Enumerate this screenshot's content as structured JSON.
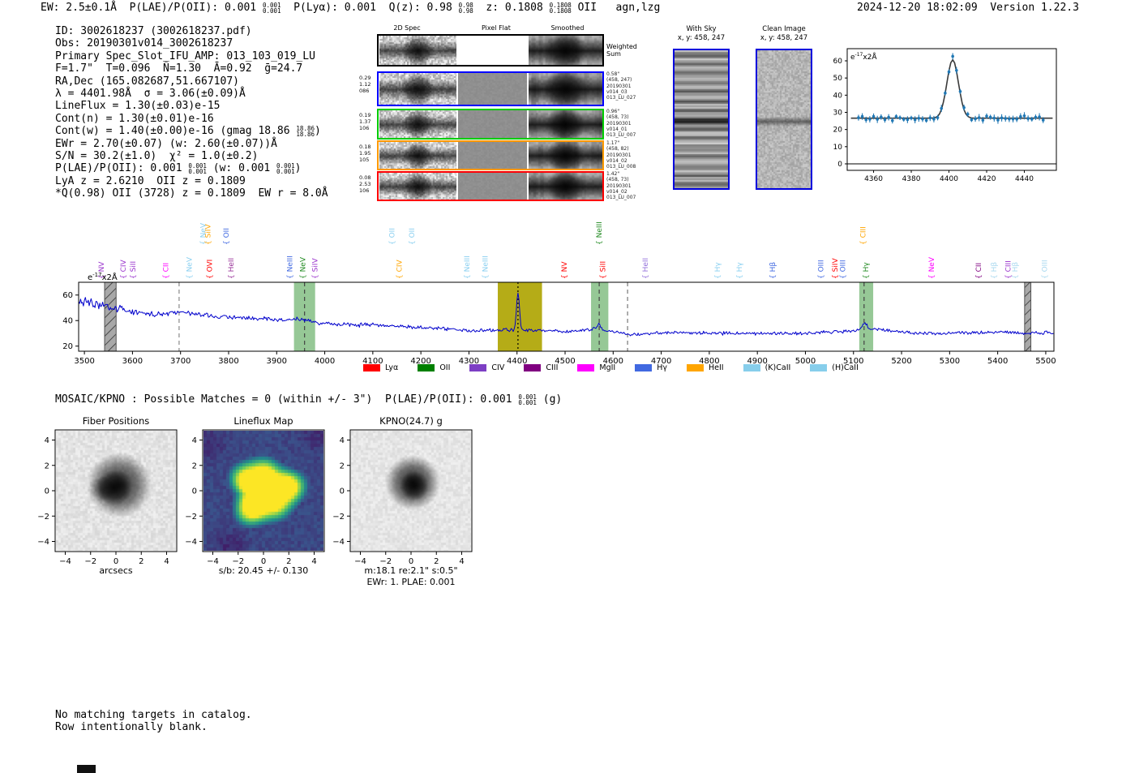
{
  "header": {
    "segments": [
      {
        "t": "EW: 2.5±0.1Å  P(LAE)/P(OII): 0.001 "
      },
      {
        "s": [
          "0.001",
          "0.001"
        ]
      },
      {
        "t": "  P(Lyα): 0.001  Q(z): 0.98 "
      },
      {
        "s": [
          "0.98",
          "0.98"
        ]
      },
      {
        "t": "  z: 0.1808 "
      },
      {
        "s": [
          "0.1808",
          "0.1808"
        ]
      },
      {
        "t": " OII   agn,lzg"
      }
    ],
    "right": "2024-12-20 18:02:09  Version 1.22.3"
  },
  "info_lines": [
    [
      {
        "t": "ID: 3002618237 (3002618237.pdf)"
      }
    ],
    [
      {
        "t": "Obs: 20190301v014_3002618237"
      }
    ],
    [
      {
        "t": "Primary Spec_Slot_IFU_AMP: 013_103_019_LU"
      }
    ],
    [
      {
        "t": "F=1.7\"  T=0.096  N̄=1.30  Ā=0.92  ḡ=24.7"
      }
    ],
    [
      {
        "t": "RA,Dec (165.082687,51.667107)"
      }
    ],
    [
      {
        "t": "λ = 4401.98Å  σ = 3.06(±0.09)Å"
      }
    ],
    [
      {
        "t": "LineFlux = 1.30(±0.03)e-15"
      }
    ],
    [
      {
        "t": "Cont(n) = 1.30(±0.01)e-16"
      }
    ],
    [
      {
        "t": "Cont(w) = 1.40(±0.00)e-16 (gmag 18.86 "
      },
      {
        "s": [
          "18.86",
          "18.86"
        ]
      },
      {
        "t": ")"
      }
    ],
    [
      {
        "t": "EWr = 2.70(±0.07) (w: 2.60(±0.07))Å"
      }
    ],
    [
      {
        "t": "S/N = 30.2(±1.0)  χ² = 1.0(±0.2)"
      }
    ],
    [
      {
        "t": "P(LAE)/P(OII): 0.001 "
      },
      {
        "s": [
          "0.001",
          "0.001"
        ]
      },
      {
        "t": " (w: 0.001 "
      },
      {
        "s": [
          "0.001",
          "0.001"
        ]
      },
      {
        "t": ")"
      }
    ],
    [
      {
        "t": "LyA z = 2.6210  OII z = 0.1809"
      }
    ],
    [
      {
        "t": "*Q(0.98) OII (3728) z = 0.1809  EW r = 8.0Å"
      }
    ]
  ],
  "cutouts": {
    "col_headers": [
      "2D Spec",
      "Pixel Flat",
      "Smoothed"
    ],
    "weighted_label": [
      "Weighted",
      "Sum"
    ],
    "rows": [
      {
        "border": "#000000",
        "top": true,
        "left": [],
        "right": []
      },
      {
        "border": "#0000ff",
        "left": [
          "0.29",
          "1.12",
          "086"
        ],
        "right": [
          "0.58\"",
          "(458, 247)",
          "20190301",
          "v014_03",
          "013_LU_027"
        ]
      },
      {
        "border": "#00cc00",
        "left": [
          "0.19",
          "1.37",
          "106"
        ],
        "right": [
          "0.96\"",
          "(458, 73)",
          "20190301",
          "v014_01",
          "013_LU_007"
        ]
      },
      {
        "border": "#ff9900",
        "left": [
          "0.18",
          "1.95",
          "105"
        ],
        "right": [
          "1.17\"",
          "(458, 82)",
          "20190301",
          "v014_02",
          "013_LU_008"
        ]
      },
      {
        "border": "#ff0000",
        "left": [
          "0.08",
          "2.53",
          "106"
        ],
        "right": [
          "1.42\"",
          "(458, 73)",
          "20190301",
          "v014_02",
          "013_LU_007"
        ]
      }
    ]
  },
  "sky_panels": [
    {
      "title": "With Sky",
      "subtitle": "x, y: 458, 247"
    },
    {
      "title": "Clean Image",
      "subtitle": "x, y: 458, 247"
    }
  ],
  "mosaic": {
    "segments": [
      {
        "t": "MOSAIC/KPNO : Possible Matches = 0 (within +/- 3\")  P(LAE)/P(OII): 0.001 "
      },
      {
        "s": [
          "0.001",
          "0.001"
        ]
      },
      {
        "t": " (g)"
      }
    ]
  },
  "footer_lines": [
    "No matching targets in catalog.",
    "Row intentionally blank."
  ],
  "chart_data": [
    {
      "name": "line-fit-zoom",
      "type": "scatter",
      "units": {
        "pre": "e",
        "sup": "-17",
        "post": "x2Å"
      },
      "x_ticks": [
        4360,
        4380,
        4400,
        4420,
        4440
      ],
      "y_ticks": [
        0,
        10,
        20,
        30,
        40,
        50,
        60
      ],
      "x_range": [
        4346,
        4457
      ],
      "y_range": [
        -4,
        67
      ],
      "baseline": 26.6,
      "gauss": {
        "center": 4401.98,
        "sigma": 3.06,
        "amplitude": 34
      },
      "point_color": "#1f77b4",
      "fit_color": "#3a3a3a"
    },
    {
      "name": "full-spectrum",
      "type": "line",
      "units": {
        "pre": "e",
        "sup": "-17",
        "post": "x2Å"
      },
      "x_ticks": [
        3500,
        3600,
        3700,
        3800,
        3900,
        4000,
        4100,
        4200,
        4300,
        4400,
        4500,
        4600,
        4700,
        4800,
        4900,
        5000,
        5100,
        5200,
        5300,
        5400,
        5500
      ],
      "y_ticks": [
        20,
        40,
        60
      ],
      "x_range": [
        3488,
        5517
      ],
      "y_range": [
        16,
        70
      ],
      "line_color": "#0000cc",
      "continuum": [
        [
          3488,
          56
        ],
        [
          3520,
          53
        ],
        [
          3560,
          49
        ],
        [
          3600,
          47
        ],
        [
          3650,
          45
        ],
        [
          3700,
          46.5
        ],
        [
          3750,
          44
        ],
        [
          3800,
          42.5
        ],
        [
          3850,
          42.5
        ],
        [
          3900,
          40.5
        ],
        [
          3950,
          41
        ],
        [
          4000,
          37.5
        ],
        [
          4060,
          36.5
        ],
        [
          4100,
          37
        ],
        [
          4150,
          35.5
        ],
        [
          4200,
          34.5
        ],
        [
          4250,
          33.5
        ],
        [
          4300,
          32.5
        ],
        [
          4350,
          32.5
        ],
        [
          4400,
          32.5
        ],
        [
          4450,
          32
        ],
        [
          4500,
          31.5
        ],
        [
          4540,
          32.5
        ],
        [
          4560,
          33.5
        ],
        [
          4600,
          31
        ],
        [
          4640,
          29
        ],
        [
          4680,
          30
        ],
        [
          4720,
          30.5
        ],
        [
          4760,
          30.5
        ],
        [
          4800,
          30
        ],
        [
          4850,
          30
        ],
        [
          4900,
          30
        ],
        [
          4950,
          30
        ],
        [
          5000,
          30
        ],
        [
          5050,
          31
        ],
        [
          5100,
          32
        ],
        [
          5140,
          33
        ],
        [
          5180,
          32
        ],
        [
          5220,
          30.5
        ],
        [
          5260,
          30
        ],
        [
          5300,
          30
        ],
        [
          5350,
          30.5
        ],
        [
          5400,
          31
        ],
        [
          5450,
          30
        ],
        [
          5517,
          30.5
        ]
      ],
      "peaks": [
        {
          "center": 4401.98,
          "sigma": 3.0,
          "amplitude": 30
        },
        {
          "center": 4571,
          "sigma": 5,
          "amplitude": 4
        },
        {
          "center": 5123,
          "sigma": 5,
          "amplitude": 5.5
        }
      ],
      "bands": [
        {
          "style": "hatched",
          "x0": 3542,
          "x1": 3566
        },
        {
          "style": "green",
          "x0": 3936,
          "x1": 3980
        },
        {
          "style": "yellow",
          "x0": 4360,
          "x1": 4452
        },
        {
          "style": "green",
          "x0": 4554,
          "x1": 4590
        },
        {
          "style": "green",
          "x0": 5112,
          "x1": 5141
        },
        {
          "style": "hatched",
          "x0": 5456,
          "x1": 5469
        }
      ],
      "vlines": [
        {
          "x": 3697,
          "dash": "5,4",
          "color": "#888888"
        },
        {
          "x": 3958,
          "dash": "5,4",
          "color": "#444444"
        },
        {
          "x": 4402,
          "dash": "2,3",
          "color": "#000000"
        },
        {
          "x": 4571,
          "dash": "5,4",
          "color": "#444444"
        },
        {
          "x": 4630,
          "dash": "5,4",
          "color": "#777777"
        },
        {
          "x": 5122,
          "dash": "5,4",
          "color": "#444444"
        }
      ],
      "line_labels": [
        {
          "text": "NV",
          "wave": 3535,
          "color": "#9932cc",
          "tier": 0
        },
        {
          "text": "CIV",
          "wave": 3581,
          "color": "#9932cc",
          "tier": 0
        },
        {
          "text": "SiII",
          "wave": 3601,
          "color": "#9932cc",
          "tier": 0
        },
        {
          "text": "CII",
          "wave": 3669,
          "color": "#ff00ff",
          "tier": 0
        },
        {
          "text": "NeV",
          "wave": 3718,
          "color": "#89cff0",
          "tier": 0
        },
        {
          "text": "NeV",
          "wave": 3747,
          "color": "#89cff0",
          "tier": 1
        },
        {
          "text": "SiIV",
          "wave": 3757,
          "color": "#ffa500",
          "tier": 1
        },
        {
          "text": "OVI",
          "wave": 3760,
          "color": "#ff0000",
          "tier": 0
        },
        {
          "text": "OII",
          "wave": 3795,
          "color": "#4169e1",
          "tier": 1
        },
        {
          "text": "HeII",
          "wave": 3805,
          "color": "#993399",
          "tier": 0
        },
        {
          "text": "NeIII",
          "wave": 3927,
          "color": "#4169e1",
          "tier": 0
        },
        {
          "text": "NeV",
          "wave": 3954,
          "color": "#228b22",
          "tier": 0
        },
        {
          "text": "SiIV",
          "wave": 3980,
          "color": "#9932cc",
          "tier": 0
        },
        {
          "text": "OII",
          "wave": 4140,
          "color": "#89cff0",
          "tier": 1
        },
        {
          "text": "CIV",
          "wave": 4155,
          "color": "#ffa500",
          "tier": 0
        },
        {
          "text": "OII",
          "wave": 4181,
          "color": "#89cff0",
          "tier": 1
        },
        {
          "text": "NeIII",
          "wave": 4296,
          "color": "#89cff0",
          "tier": 0
        },
        {
          "text": "NeIII",
          "wave": 4334,
          "color": "#89cff0",
          "tier": 0
        },
        {
          "text": "NV",
          "wave": 4498,
          "color": "#ff0000",
          "tier": 0
        },
        {
          "text": "NeIII",
          "wave": 4571,
          "color": "#228b22",
          "tier": 1
        },
        {
          "text": "SiII",
          "wave": 4578,
          "color": "#ff0000",
          "tier": 0
        },
        {
          "text": "HeII",
          "wave": 4667,
          "color": "#9370db",
          "tier": 0
        },
        {
          "text": "Hγ",
          "wave": 4817,
          "color": "#89cff0",
          "tier": 0
        },
        {
          "text": "Hγ",
          "wave": 4863,
          "color": "#89cff0",
          "tier": 0
        },
        {
          "text": "Hβ",
          "wave": 4932,
          "color": "#4169e1",
          "tier": 0
        },
        {
          "text": "OIII",
          "wave": 5032,
          "color": "#4169e1",
          "tier": 0
        },
        {
          "text": "SiIV",
          "wave": 5062,
          "color": "#ff0000",
          "tier": 0
        },
        {
          "text": "OIII",
          "wave": 5078,
          "color": "#4169e1",
          "tier": 0
        },
        {
          "text": "CIII",
          "wave": 5120,
          "color": "#ffa500",
          "tier": 1
        },
        {
          "text": "Hγ",
          "wave": 5126,
          "color": "#228b22",
          "tier": 0
        },
        {
          "text": "NeV",
          "wave": 5262,
          "color": "#ff00ff",
          "tier": 0
        },
        {
          "text": "CII",
          "wave": 5360,
          "color": "#800080",
          "tier": 0
        },
        {
          "text": "Hβ",
          "wave": 5392,
          "color": "#a8d8ef",
          "tier": 0
        },
        {
          "text": "CIII",
          "wave": 5422,
          "color": "#9932cc",
          "tier": 0
        },
        {
          "text": "Hβ",
          "wave": 5436,
          "color": "#a8d8ef",
          "tier": 0
        },
        {
          "text": "OIII",
          "wave": 5498,
          "color": "#a8d8ef",
          "tier": 0
        }
      ],
      "legend": [
        {
          "label": "Lyα",
          "color": "#ff0000"
        },
        {
          "label": "OII",
          "color": "#008000"
        },
        {
          "label": "CIV",
          "color": "#7d3fc4"
        },
        {
          "label": "CIII",
          "color": "#800080"
        },
        {
          "label": "MgII",
          "color": "#ff00ff"
        },
        {
          "label": "Hγ",
          "color": "#4169e1"
        },
        {
          "label": "HeII",
          "color": "#ffa500"
        },
        {
          "label": "(K)CaII",
          "color": "#87ceeb"
        },
        {
          "label": "(H)CaII",
          "color": "#87ceeb"
        }
      ]
    },
    {
      "name": "fiber-positions",
      "type": "map",
      "title": "Fiber Positions",
      "xlabel": "arcsecs",
      "axis_ticks": [
        -4,
        -2,
        0,
        2,
        4
      ],
      "axis_range": [
        -4.8,
        4.8
      ],
      "compass_n": "N",
      "compass_e": "E",
      "extent_square": 3,
      "fiber_radius": 0.8,
      "fiber_rows": [
        {
          "y": 2.76,
          "xs": [
            -1.4,
            0.2,
            1.8
          ]
        },
        {
          "y": 1.38,
          "xs": [
            -2.2,
            -0.6,
            1.0,
            2.6
          ]
        },
        {
          "y": 0,
          "xs": [
            -3.0,
            -1.4,
            0.2,
            1.8,
            3.4
          ]
        },
        {
          "y": -1.38,
          "xs": [
            -2.2,
            -0.6,
            1.0,
            2.6
          ]
        },
        {
          "y": -2.76,
          "xs": [
            -1.4,
            0.2,
            1.8
          ]
        }
      ],
      "highlight_fibers": [
        {
          "x": -1.45,
          "y": -0.05,
          "color": "#ff0000"
        },
        {
          "x": 0.35,
          "y": 0.6,
          "color": "#0000ff"
        },
        {
          "x": -0.25,
          "y": -0.85,
          "color": "#00cc00"
        },
        {
          "x": 1.05,
          "y": -0.5,
          "color": "#ffa500"
        }
      ]
    },
    {
      "name": "lineflux-map",
      "type": "map",
      "title": "Lineflux Map",
      "xlabel": "s/b: 20.45 +/- 0.130",
      "axis_ticks": [
        -4,
        -2,
        0,
        2,
        4
      ],
      "axis_range": [
        -4.8,
        4.8
      ],
      "compass_n": "N",
      "compass_e": "E",
      "extent_square": 3,
      "crosshair_halflen": 2.4
    },
    {
      "name": "kpno-image",
      "type": "map",
      "title": "KPNO(24.7) g",
      "xlabel": "m:18.1  re:2.1\"  s:0.5\"",
      "xlabel2": "EWr: 1. PLAE: 0.001",
      "axis_ticks": [
        -4,
        -2,
        0,
        2,
        4
      ],
      "axis_range": [
        -4.8,
        4.8
      ],
      "compass_n": "N",
      "compass_e": "E",
      "extent_square": 3,
      "aperture_radius": 2.25,
      "aperture_color": "#e0c020",
      "crosshair_halflen": 2.4
    }
  ]
}
